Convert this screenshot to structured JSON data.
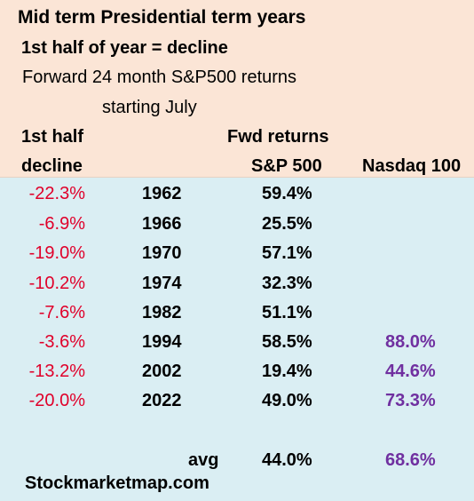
{
  "header": {
    "title": "Mid term Presidential term years",
    "subtitle": "1st half of year =  decline",
    "description_line1": "Forward 24 month S&P500 returns",
    "description_line2": "starting July"
  },
  "columns": {
    "col1_line1": "1st half",
    "col1_line2": "decline",
    "col3_line1": "Fwd returns",
    "col3_line2": "S&P 500",
    "col4": "Nasdaq 100"
  },
  "rows": [
    {
      "decline": "-22.3%",
      "year": "1962",
      "sp500": "59.4%",
      "nasdaq": ""
    },
    {
      "decline": "-6.9%",
      "year": "1966",
      "sp500": "25.5%",
      "nasdaq": ""
    },
    {
      "decline": "-19.0%",
      "year": "1970",
      "sp500": "57.1%",
      "nasdaq": ""
    },
    {
      "decline": "-10.2%",
      "year": "1974",
      "sp500": "32.3%",
      "nasdaq": ""
    },
    {
      "decline": "-7.6%",
      "year": "1982",
      "sp500": "51.1%",
      "nasdaq": ""
    },
    {
      "decline": "-3.6%",
      "year": "1994",
      "sp500": "58.5%",
      "nasdaq": "88.0%"
    },
    {
      "decline": "-13.2%",
      "year": "2002",
      "sp500": "19.4%",
      "nasdaq": "44.6%"
    },
    {
      "decline": "-20.0%",
      "year": "2022",
      "sp500": "49.0%",
      "nasdaq": "73.3%"
    }
  ],
  "average": {
    "label": "avg",
    "sp500": "44.0%",
    "nasdaq": "68.6%"
  },
  "footer": {
    "source": "Stockmarketmap.com"
  },
  "colors": {
    "header_bg": "#fbe5d6",
    "body_bg": "#daeef3",
    "decline_red": "#e0002a",
    "nasdaq_purple": "#7030a0"
  }
}
